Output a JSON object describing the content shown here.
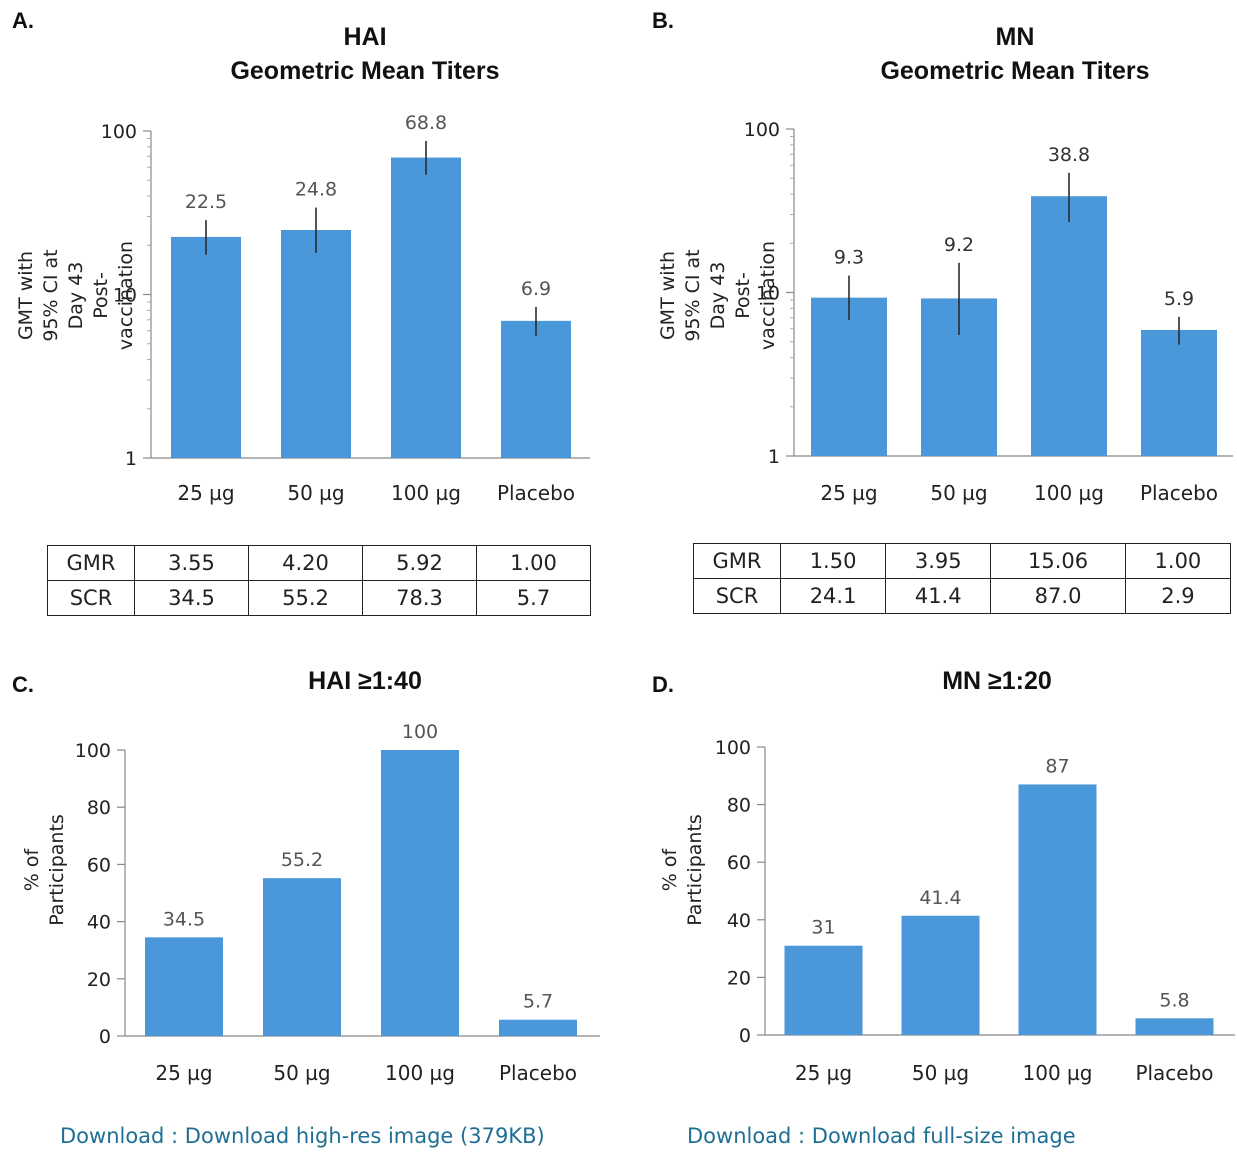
{
  "panels": {
    "A": {
      "letter": "A.",
      "title_line1": "HAI",
      "title_line2": "Geometric Mean Titers"
    },
    "B": {
      "letter": "B.",
      "title_line1": "MN",
      "title_line2": "Geometric Mean Titers"
    },
    "C": {
      "letter": "C.",
      "title": "HAI ≥1:40"
    },
    "D": {
      "letter": "D.",
      "title": "MN ≥1:20"
    }
  },
  "tables": {
    "A": {
      "rows": [
        {
          "label": "GMR",
          "values": [
            "3.55",
            "4.20",
            "5.92",
            "1.00"
          ]
        },
        {
          "label": "SCR",
          "values": [
            "34.5",
            "55.2",
            "78.3",
            "5.7"
          ]
        }
      ]
    },
    "B": {
      "rows": [
        {
          "label": "GMR",
          "values": [
            "1.50",
            "3.95",
            "15.06",
            "1.00"
          ]
        },
        {
          "label": "SCR",
          "values": [
            "24.1",
            "41.4",
            "87.0",
            "2.9"
          ]
        }
      ]
    }
  },
  "downloads": {
    "left": "Download : Download high-res image (379KB)",
    "right": "Download : Download full-size image",
    "link_color": "#1f6f95"
  },
  "chart_data": [
    {
      "id": "A",
      "type": "bar",
      "scale": "log",
      "categories": [
        "25 µg",
        "50 µg",
        "100 µg",
        "Placebo"
      ],
      "values": [
        22.5,
        24.8,
        68.8,
        6.9
      ],
      "labels": [
        "22.5",
        "24.8",
        "68.8",
        "6.9"
      ],
      "error_bars": [
        [
          17.5,
          28.5
        ],
        [
          18.0,
          34.0
        ],
        [
          54.0,
          87.0
        ],
        [
          5.6,
          8.4
        ]
      ],
      "ylabel": "GMT with 95% CI at\nDay 43 Post-vaccination",
      "ylim": [
        1,
        100
      ],
      "yticks": [
        "1",
        "10",
        "100"
      ],
      "bar_color": "#4a97d9",
      "label_color": "#555555",
      "grid": false
    },
    {
      "id": "B",
      "type": "bar",
      "scale": "log",
      "categories": [
        "25 µg",
        "50 µg",
        "100 µg",
        "Placebo"
      ],
      "values": [
        9.3,
        9.2,
        38.8,
        5.9
      ],
      "labels": [
        "9.3",
        "9.2",
        "38.8",
        "5.9"
      ],
      "error_bars": [
        [
          6.8,
          12.7
        ],
        [
          5.5,
          15.2
        ],
        [
          27.0,
          54.0
        ],
        [
          4.8,
          7.1
        ]
      ],
      "ylabel": "GMT with 95% CI at\nDay 43 Post-vaccination",
      "ylim": [
        1,
        100
      ],
      "yticks": [
        "1",
        "10",
        "100"
      ],
      "bar_color": "#4a97d9",
      "label_color": "#333333",
      "grid": false
    },
    {
      "id": "C",
      "type": "bar",
      "scale": "linear",
      "categories": [
        "25 µg",
        "50 µg",
        "100 µg",
        "Placebo"
      ],
      "values": [
        34.5,
        55.2,
        100,
        5.7
      ],
      "labels": [
        "34.5",
        "55.2",
        "100",
        "5.7"
      ],
      "ylabel": "% of Participants",
      "ylim": [
        0,
        100
      ],
      "yticks": [
        "0",
        "20",
        "40",
        "60",
        "80",
        "100"
      ],
      "bar_color": "#4a97d9",
      "label_color": "#555555",
      "grid": false
    },
    {
      "id": "D",
      "type": "bar",
      "scale": "linear",
      "categories": [
        "25 µg",
        "50 µg",
        "100 µg",
        "Placebo"
      ],
      "values": [
        31,
        41.4,
        87,
        5.8
      ],
      "labels": [
        "31",
        "41.4",
        "87",
        "5.8"
      ],
      "ylabel": "% of Participants",
      "ylim": [
        0,
        100
      ],
      "yticks": [
        "0",
        "20",
        "40",
        "60",
        "80",
        "100"
      ],
      "bar_color": "#4a97d9",
      "label_color": "#555555",
      "grid": false
    }
  ]
}
